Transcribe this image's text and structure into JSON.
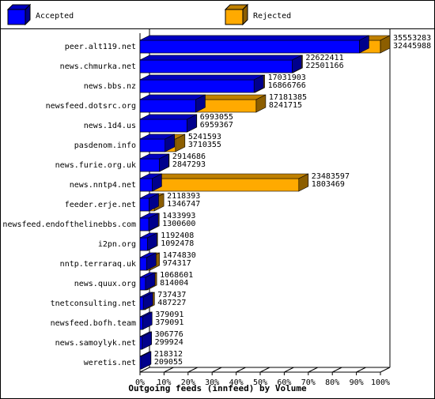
{
  "chart_data": {
    "type": "bar3d",
    "orientation": "horizontal",
    "xlabel": "Outgoing feeds (innfeed) by Volume",
    "categories": [
      "peer.alt119.net",
      "news.chmurka.net",
      "news.bbs.nz",
      "newsfeed.dotsrc.org",
      "news.1d4.us",
      "pasdenom.info",
      "news.furie.org.uk",
      "news.nntp4.net",
      "feeder.erje.net",
      "newsfeed.endofthelinebbs.com",
      "i2pn.org",
      "nntp.terraraq.uk",
      "news.quux.org",
      "tnetconsulting.net",
      "newsfeed.bofh.team",
      "news.samoylyk.net",
      "weretis.net"
    ],
    "series": [
      {
        "name": "Rejected",
        "color": "#ffaa00",
        "values": [
          35553283,
          22622411,
          17031903,
          17181385,
          6993055,
          5241593,
          2914686,
          23483597,
          2118393,
          1433993,
          1192408,
          1474830,
          1068601,
          737437,
          379091,
          306776,
          218312
        ]
      },
      {
        "name": "Accepted",
        "color": "#0000ff",
        "values": [
          32445988,
          22501166,
          16866766,
          8241715,
          6959367,
          3710355,
          2847293,
          1803469,
          1346747,
          1300600,
          1092478,
          974317,
          814004,
          487227,
          379091,
          299924,
          209055
        ]
      }
    ],
    "xlim": [
      0,
      35553283
    ],
    "xticks": [
      {
        "value": 0,
        "label": "0%"
      },
      {
        "value": 3555328.3,
        "label": "10%"
      },
      {
        "value": 7110656.6,
        "label": "20%"
      },
      {
        "value": 10665984.9,
        "label": "30%"
      },
      {
        "value": 14221313.2,
        "label": "40%"
      },
      {
        "value": 17776641.5,
        "label": "50%"
      },
      {
        "value": 21331969.8,
        "label": "60%"
      },
      {
        "value": 24887298.1,
        "label": "70%"
      },
      {
        "value": 28442626.4,
        "label": "80%"
      },
      {
        "value": 31997954.7,
        "label": "90%"
      },
      {
        "value": 35553283,
        "label": "100%"
      }
    ]
  }
}
